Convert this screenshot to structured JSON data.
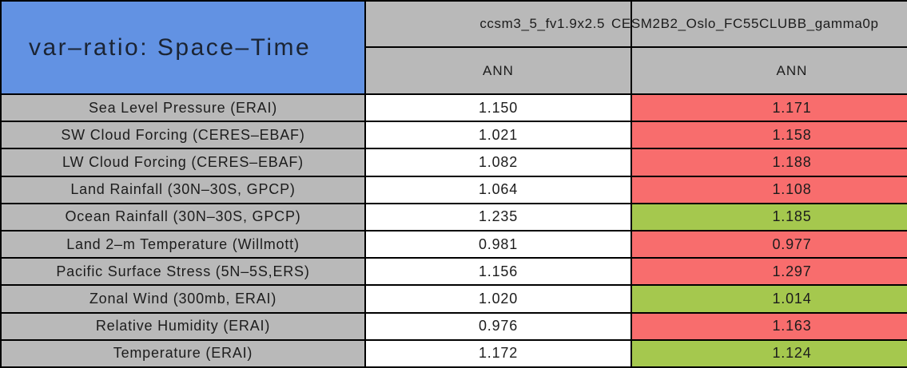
{
  "chart_data": {
    "type": "table",
    "title": "var–ratio: Space–Time",
    "column_groups": [
      {
        "model": "ccsm3_5_fv1.9x2.5",
        "season": "ANN"
      },
      {
        "model": "CESM2B2_Oslo_FC55CLUBB_gamma0p",
        "season": "ANN"
      }
    ],
    "rows": [
      {
        "label": "Sea Level Pressure (ERAI)",
        "cells": [
          {
            "value": "1.150",
            "highlight": "none"
          },
          {
            "value": "1.171",
            "highlight": "red"
          }
        ]
      },
      {
        "label": "SW Cloud Forcing (CERES–EBAF)",
        "cells": [
          {
            "value": "1.021",
            "highlight": "none"
          },
          {
            "value": "1.158",
            "highlight": "red"
          }
        ]
      },
      {
        "label": "LW Cloud Forcing (CERES–EBAF)",
        "cells": [
          {
            "value": "1.082",
            "highlight": "none"
          },
          {
            "value": "1.188",
            "highlight": "red"
          }
        ]
      },
      {
        "label": "Land Rainfall (30N–30S, GPCP)",
        "cells": [
          {
            "value": "1.064",
            "highlight": "none"
          },
          {
            "value": "1.108",
            "highlight": "red"
          }
        ]
      },
      {
        "label": "Ocean Rainfall (30N–30S, GPCP)",
        "cells": [
          {
            "value": "1.235",
            "highlight": "none"
          },
          {
            "value": "1.185",
            "highlight": "green"
          }
        ]
      },
      {
        "label": "Land 2–m Temperature (Willmott)",
        "cells": [
          {
            "value": "0.981",
            "highlight": "none"
          },
          {
            "value": "0.977",
            "highlight": "red"
          }
        ]
      },
      {
        "label": "Pacific Surface Stress (5N–5S,ERS)",
        "cells": [
          {
            "value": "1.156",
            "highlight": "none"
          },
          {
            "value": "1.297",
            "highlight": "red"
          }
        ]
      },
      {
        "label": "Zonal Wind (300mb, ERAI)",
        "cells": [
          {
            "value": "1.020",
            "highlight": "none"
          },
          {
            "value": "1.014",
            "highlight": "green"
          }
        ]
      },
      {
        "label": "Relative Humidity (ERAI)",
        "cells": [
          {
            "value": "0.976",
            "highlight": "none"
          },
          {
            "value": "1.163",
            "highlight": "red"
          }
        ]
      },
      {
        "label": "Temperature (ERAI)",
        "cells": [
          {
            "value": "1.172",
            "highlight": "none"
          },
          {
            "value": "1.124",
            "highlight": "green"
          }
        ]
      }
    ]
  },
  "colors": {
    "blue": "#6292E3",
    "gray": "#B9B9B9",
    "red": "#F86D6D",
    "green": "#A5C84E",
    "border": "#000000",
    "text": "#1c1c1c"
  }
}
